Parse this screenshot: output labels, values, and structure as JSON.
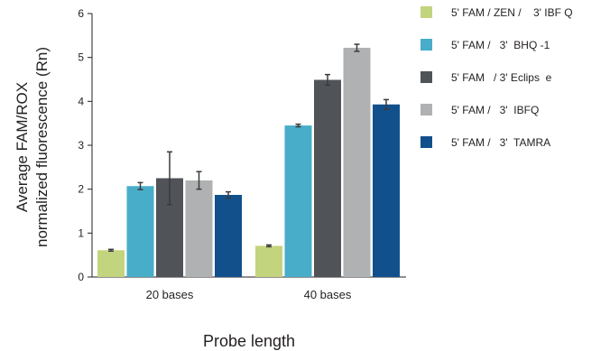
{
  "chart_data": {
    "type": "bar",
    "title": "",
    "categories": [
      "20 bases",
      "40 bases"
    ],
    "ylabel": "Average  FAM/ROX normalized fluorescence (Rn)",
    "ylabel_lines": [
      "Average  FAM/ROX",
      "normalized fluorescence (Rn)"
    ],
    "xlabel": "Probe length",
    "ylim": [
      0,
      6
    ],
    "yticks": [
      "0",
      "1",
      "2",
      "3",
      "4",
      "5",
      "6"
    ],
    "grid": false,
    "legend_position": "right",
    "error_bars": true,
    "series": [
      {
        "name": "5' FAM / ZEN /    3' IBF Q",
        "color": "#c3d47e",
        "values": [
          0.61,
          0.71
        ],
        "errors": [
          0.02,
          0.02
        ]
      },
      {
        "name": "5' FAM /   3'  BHQ -1",
        "color": "#48adc9",
        "values": [
          2.07,
          3.45
        ],
        "errors": [
          0.08,
          0.03
        ]
      },
      {
        "name": "5' FAM   / 3' Eclips  e",
        "color": "#505459",
        "values": [
          2.25,
          4.49
        ],
        "errors": [
          0.6,
          0.12
        ]
      },
      {
        "name": "5' FAM /   3'  IBFQ",
        "color": "#b0b1b2",
        "values": [
          2.2,
          5.22
        ],
        "errors": [
          0.2,
          0.08
        ]
      },
      {
        "name": "5' FAM /   3'  TAMRA",
        "color": "#12508c",
        "values": [
          1.87,
          3.93
        ],
        "errors": [
          0.07,
          0.11
        ]
      }
    ]
  }
}
